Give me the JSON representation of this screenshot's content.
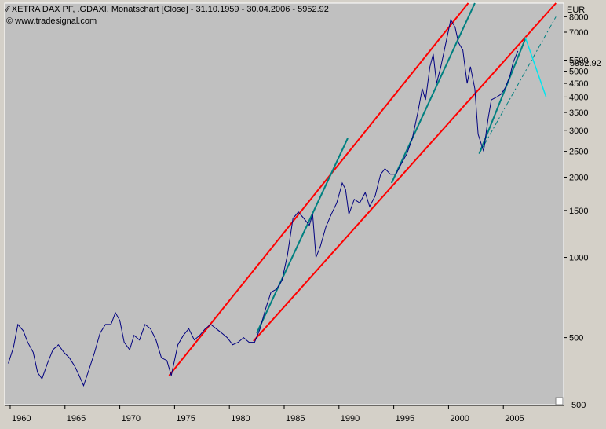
{
  "header": {
    "title_icon": "line-chart-icon",
    "title": "XETRA DAX PF, .GDAXI, Monatschart [Close] - 31.10.1959 - 30.04.2006 - 5952.92",
    "source_icon": "copyright-icon",
    "source": "www.tradesignal.com"
  },
  "axis": {
    "currency": "EUR",
    "last_value_label": "5952.92",
    "bottom_partial_label": "500"
  },
  "colors": {
    "plot_bg": "#c0c0c0",
    "price_line": "#000080",
    "channel": "#ff0000",
    "trend": "#008080",
    "projection": "#00e5ee",
    "panel_bg": "#d4d0c8"
  },
  "chart_data": {
    "type": "line",
    "title": "XETRA DAX PF, .GDAXI, Monatschart [Close] - 31.10.1959 - 30.04.2006 - 5952.92",
    "ylabel": "EUR",
    "yscale": "log",
    "ylim": [
      280,
      9000
    ],
    "xlim": [
      1959.5,
      2010.5
    ],
    "x_ticks": [
      1960,
      1965,
      1970,
      1975,
      1980,
      1985,
      1990,
      1995,
      2000,
      2005
    ],
    "y_ticks": [
      500,
      1000,
      1500,
      2000,
      2500,
      3000,
      3500,
      4000,
      4500,
      5000,
      5500,
      7000,
      8000
    ],
    "grid": false,
    "series": [
      {
        "values_xy": [
          [
            1959.83,
            400
          ],
          [
            1960.3,
            460
          ],
          [
            1960.7,
            560
          ],
          [
            1961.2,
            530
          ],
          [
            1961.6,
            480
          ],
          [
            1962.1,
            440
          ],
          [
            1962.5,
            370
          ],
          [
            1962.9,
            350
          ],
          [
            1963.4,
            400
          ],
          [
            1963.9,
            450
          ],
          [
            1964.4,
            470
          ],
          [
            1964.9,
            440
          ],
          [
            1965.4,
            420
          ],
          [
            1965.9,
            390
          ],
          [
            1966.3,
            360
          ],
          [
            1966.7,
            330
          ],
          [
            1967.2,
            380
          ],
          [
            1967.7,
            440
          ],
          [
            1968.2,
            520
          ],
          [
            1968.7,
            560
          ],
          [
            1969.2,
            560
          ],
          [
            1969.6,
            620
          ],
          [
            1970.0,
            580
          ],
          [
            1970.4,
            480
          ],
          [
            1970.9,
            450
          ],
          [
            1971.3,
            510
          ],
          [
            1971.8,
            490
          ],
          [
            1972.3,
            560
          ],
          [
            1972.8,
            540
          ],
          [
            1973.3,
            490
          ],
          [
            1973.8,
            420
          ],
          [
            1974.3,
            410
          ],
          [
            1974.7,
            360
          ],
          [
            1975.3,
            470
          ],
          [
            1975.8,
            510
          ],
          [
            1976.3,
            540
          ],
          [
            1976.8,
            490
          ],
          [
            1977.3,
            510
          ],
          [
            1977.8,
            540
          ],
          [
            1978.3,
            560
          ],
          [
            1978.8,
            540
          ],
          [
            1979.3,
            520
          ],
          [
            1979.8,
            500
          ],
          [
            1980.3,
            470
          ],
          [
            1980.8,
            480
          ],
          [
            1981.3,
            500
          ],
          [
            1981.8,
            480
          ],
          [
            1982.3,
            480
          ],
          [
            1982.8,
            540
          ],
          [
            1983.3,
            640
          ],
          [
            1983.8,
            740
          ],
          [
            1984.3,
            760
          ],
          [
            1984.8,
            820
          ],
          [
            1985.3,
            1020
          ],
          [
            1985.8,
            1400
          ],
          [
            1986.3,
            1480
          ],
          [
            1986.8,
            1400
          ],
          [
            1987.3,
            1320
          ],
          [
            1987.6,
            1450
          ],
          [
            1987.9,
            1000
          ],
          [
            1988.3,
            1100
          ],
          [
            1988.8,
            1300
          ],
          [
            1989.3,
            1450
          ],
          [
            1989.8,
            1600
          ],
          [
            1990.3,
            1900
          ],
          [
            1990.6,
            1800
          ],
          [
            1990.9,
            1450
          ],
          [
            1991.4,
            1650
          ],
          [
            1991.9,
            1600
          ],
          [
            1992.4,
            1750
          ],
          [
            1992.8,
            1550
          ],
          [
            1993.3,
            1700
          ],
          [
            1993.8,
            2050
          ],
          [
            1994.2,
            2150
          ],
          [
            1994.7,
            2050
          ],
          [
            1995.2,
            2050
          ],
          [
            1995.7,
            2250
          ],
          [
            1996.2,
            2450
          ],
          [
            1996.7,
            2800
          ],
          [
            1997.2,
            3500
          ],
          [
            1997.6,
            4300
          ],
          [
            1997.9,
            3900
          ],
          [
            1998.3,
            5200
          ],
          [
            1998.6,
            5800
          ],
          [
            1998.9,
            4500
          ],
          [
            1999.3,
            5200
          ],
          [
            1999.8,
            6500
          ],
          [
            2000.2,
            7800
          ],
          [
            2000.6,
            7300
          ],
          [
            2000.9,
            6400
          ],
          [
            2001.3,
            6000
          ],
          [
            2001.7,
            4500
          ],
          [
            2002.0,
            5200
          ],
          [
            2002.4,
            4300
          ],
          [
            2002.7,
            2900
          ],
          [
            2003.2,
            2500
          ],
          [
            2003.6,
            3300
          ],
          [
            2003.9,
            3900
          ],
          [
            2004.4,
            4000
          ],
          [
            2004.8,
            4100
          ],
          [
            2005.2,
            4350
          ],
          [
            2005.6,
            4800
          ],
          [
            2005.9,
            5400
          ],
          [
            2006.33,
            5952.92
          ]
        ]
      }
    ]
  }
}
